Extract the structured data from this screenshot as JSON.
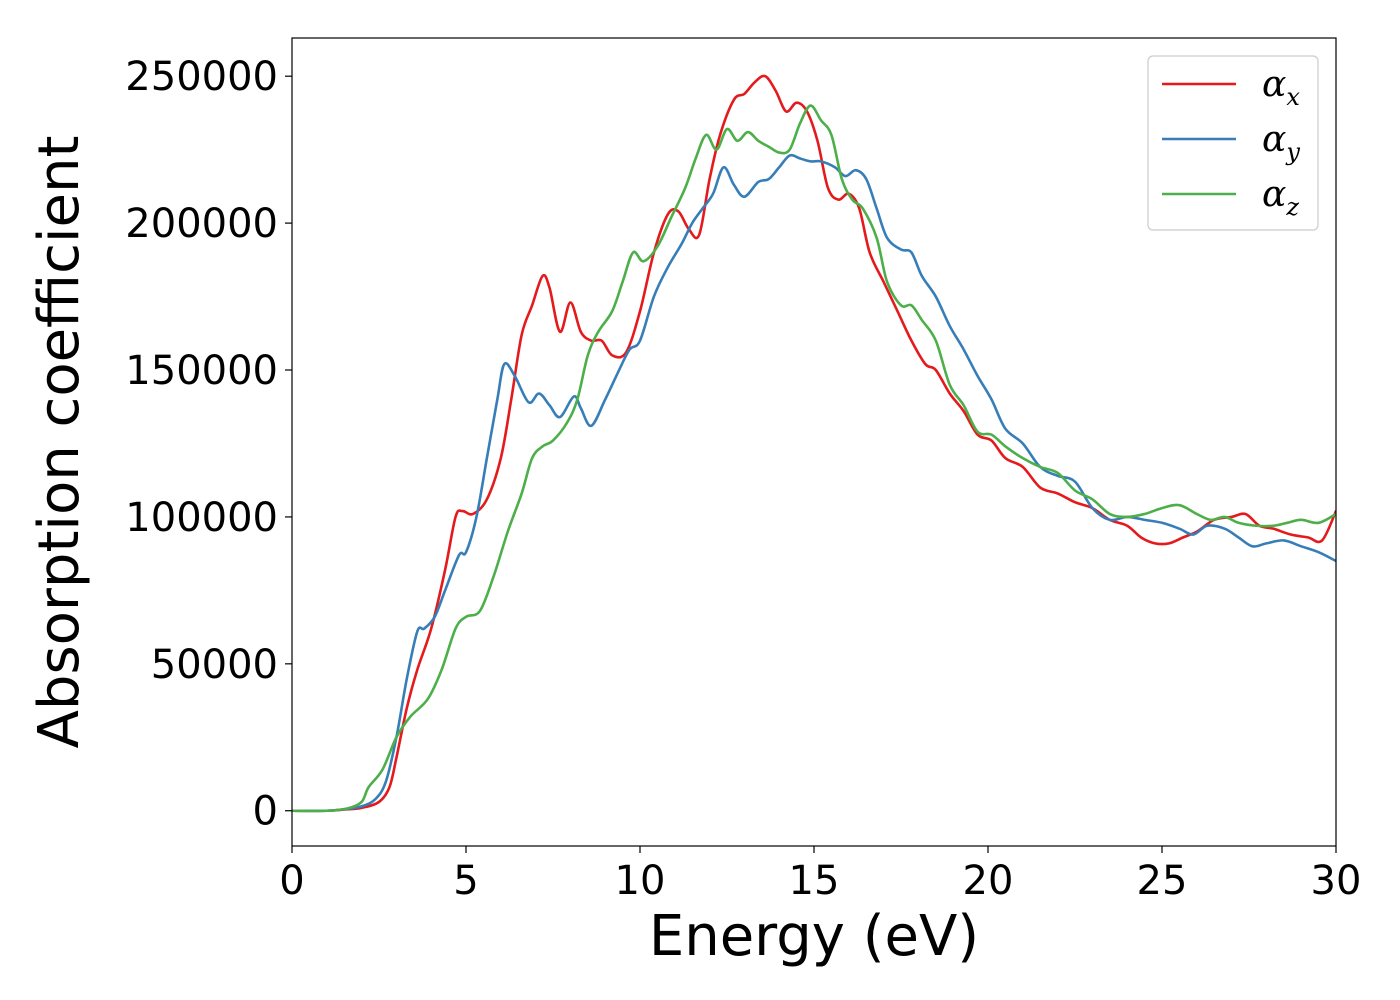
{
  "chart_data": {
    "type": "line",
    "title": "",
    "xlabel": "Energy (eV)",
    "ylabel": "Absorption coefficient",
    "xlim": [
      0,
      30
    ],
    "ylim": [
      -12000,
      263000
    ],
    "xticks": [
      0,
      5,
      10,
      15,
      20,
      25,
      30
    ],
    "xtick_labels": [
      "0",
      "5",
      "10",
      "15",
      "20",
      "25",
      "30"
    ],
    "yticks": [
      0,
      50000,
      100000,
      150000,
      200000,
      250000
    ],
    "ytick_labels": [
      "0",
      "50000",
      "100000",
      "150000",
      "200000",
      "250000"
    ],
    "grid": false,
    "legend_position": "top-right",
    "series": [
      {
        "name": "α_x",
        "legend_base": "α",
        "legend_sub": "x",
        "color": "#e41a1c",
        "points": [
          [
            0,
            0
          ],
          [
            1.0,
            0
          ],
          [
            1.5,
            400
          ],
          [
            2.0,
            1000
          ],
          [
            2.5,
            3000
          ],
          [
            2.8,
            8000
          ],
          [
            3.0,
            18000
          ],
          [
            3.3,
            35000
          ],
          [
            3.6,
            48000
          ],
          [
            4.0,
            62000
          ],
          [
            4.4,
            82000
          ],
          [
            4.7,
            100000
          ],
          [
            4.9,
            102000
          ],
          [
            5.2,
            101000
          ],
          [
            5.6,
            106000
          ],
          [
            6.0,
            120000
          ],
          [
            6.3,
            140000
          ],
          [
            6.6,
            162000
          ],
          [
            6.9,
            172000
          ],
          [
            7.2,
            182000
          ],
          [
            7.4,
            178000
          ],
          [
            7.7,
            163000
          ],
          [
            8.0,
            173000
          ],
          [
            8.3,
            163000
          ],
          [
            8.6,
            160000
          ],
          [
            8.9,
            160000
          ],
          [
            9.2,
            155000
          ],
          [
            9.6,
            156000
          ],
          [
            10.0,
            170000
          ],
          [
            10.4,
            190000
          ],
          [
            10.8,
            203000
          ],
          [
            11.1,
            204000
          ],
          [
            11.4,
            198000
          ],
          [
            11.7,
            196000
          ],
          [
            12.0,
            215000
          ],
          [
            12.3,
            230000
          ],
          [
            12.7,
            242000
          ],
          [
            13.0,
            244000
          ],
          [
            13.3,
            248000
          ],
          [
            13.6,
            250000
          ],
          [
            13.9,
            245000
          ],
          [
            14.2,
            238000
          ],
          [
            14.5,
            241000
          ],
          [
            14.8,
            238000
          ],
          [
            15.1,
            228000
          ],
          [
            15.4,
            212000
          ],
          [
            15.7,
            208000
          ],
          [
            16.0,
            210000
          ],
          [
            16.3,
            205000
          ],
          [
            16.6,
            190000
          ],
          [
            17.0,
            180000
          ],
          [
            17.4,
            170000
          ],
          [
            17.8,
            160000
          ],
          [
            18.2,
            152000
          ],
          [
            18.5,
            150000
          ],
          [
            18.9,
            142000
          ],
          [
            19.3,
            136000
          ],
          [
            19.7,
            128000
          ],
          [
            20.1,
            126000
          ],
          [
            20.5,
            120000
          ],
          [
            21.0,
            117000
          ],
          [
            21.5,
            110000
          ],
          [
            22.0,
            108000
          ],
          [
            22.5,
            105000
          ],
          [
            23.0,
            103000
          ],
          [
            23.5,
            99000
          ],
          [
            24.0,
            97000
          ],
          [
            24.4,
            93000
          ],
          [
            24.8,
            91000
          ],
          [
            25.2,
            91000
          ],
          [
            25.6,
            93000
          ],
          [
            26.0,
            95000
          ],
          [
            26.5,
            99000
          ],
          [
            27.0,
            100000
          ],
          [
            27.4,
            101000
          ],
          [
            27.8,
            97000
          ],
          [
            28.2,
            96000
          ],
          [
            28.7,
            94000
          ],
          [
            29.2,
            93000
          ],
          [
            29.6,
            92000
          ],
          [
            30,
            102000
          ]
        ]
      },
      {
        "name": "α_y",
        "legend_base": "α",
        "legend_sub": "y",
        "color": "#377eb8",
        "points": [
          [
            0,
            0
          ],
          [
            1.0,
            0
          ],
          [
            1.5,
            500
          ],
          [
            2.0,
            1500
          ],
          [
            2.4,
            4000
          ],
          [
            2.7,
            10000
          ],
          [
            3.0,
            25000
          ],
          [
            3.3,
            45000
          ],
          [
            3.6,
            61000
          ],
          [
            3.8,
            62000
          ],
          [
            4.1,
            66000
          ],
          [
            4.4,
            75000
          ],
          [
            4.8,
            87000
          ],
          [
            5.0,
            88000
          ],
          [
            5.3,
            100000
          ],
          [
            5.6,
            120000
          ],
          [
            5.9,
            140000
          ],
          [
            6.1,
            152000
          ],
          [
            6.4,
            148000
          ],
          [
            6.8,
            139000
          ],
          [
            7.1,
            142000
          ],
          [
            7.4,
            138000
          ],
          [
            7.7,
            134000
          ],
          [
            8.1,
            141000
          ],
          [
            8.3,
            137000
          ],
          [
            8.6,
            131000
          ],
          [
            9.0,
            140000
          ],
          [
            9.4,
            150000
          ],
          [
            9.7,
            157000
          ],
          [
            10.0,
            160000
          ],
          [
            10.4,
            175000
          ],
          [
            10.8,
            185000
          ],
          [
            11.2,
            193000
          ],
          [
            11.5,
            200000
          ],
          [
            11.8,
            205000
          ],
          [
            12.1,
            210000
          ],
          [
            12.4,
            219000
          ],
          [
            12.7,
            213000
          ],
          [
            13.0,
            209000
          ],
          [
            13.4,
            214000
          ],
          [
            13.7,
            215000
          ],
          [
            14.0,
            219000
          ],
          [
            14.3,
            223000
          ],
          [
            14.6,
            222000
          ],
          [
            14.9,
            221000
          ],
          [
            15.2,
            221000
          ],
          [
            15.6,
            219000
          ],
          [
            15.9,
            216000
          ],
          [
            16.2,
            218000
          ],
          [
            16.5,
            215000
          ],
          [
            16.8,
            205000
          ],
          [
            17.1,
            195000
          ],
          [
            17.5,
            191000
          ],
          [
            17.8,
            190000
          ],
          [
            18.1,
            182000
          ],
          [
            18.5,
            175000
          ],
          [
            18.9,
            165000
          ],
          [
            19.3,
            157000
          ],
          [
            19.7,
            148000
          ],
          [
            20.1,
            140000
          ],
          [
            20.5,
            130000
          ],
          [
            21.0,
            125000
          ],
          [
            21.5,
            117000
          ],
          [
            22.0,
            114000
          ],
          [
            22.5,
            112000
          ],
          [
            23.0,
            103000
          ],
          [
            23.5,
            99000
          ],
          [
            24.0,
            100000
          ],
          [
            24.5,
            99000
          ],
          [
            25.0,
            98000
          ],
          [
            25.5,
            96000
          ],
          [
            25.9,
            94000
          ],
          [
            26.3,
            97000
          ],
          [
            26.8,
            96000
          ],
          [
            27.2,
            93000
          ],
          [
            27.6,
            90000
          ],
          [
            28.0,
            91000
          ],
          [
            28.5,
            92000
          ],
          [
            29.0,
            90000
          ],
          [
            29.5,
            88000
          ],
          [
            30,
            85000
          ]
        ]
      },
      {
        "name": "α_z",
        "legend_base": "α",
        "legend_sub": "z",
        "color": "#4daf4a",
        "points": [
          [
            0,
            0
          ],
          [
            1.0,
            0
          ],
          [
            1.6,
            800
          ],
          [
            2.0,
            3000
          ],
          [
            2.2,
            8000
          ],
          [
            2.6,
            14000
          ],
          [
            3.0,
            25000
          ],
          [
            3.4,
            32000
          ],
          [
            3.9,
            38000
          ],
          [
            4.3,
            48000
          ],
          [
            4.7,
            62000
          ],
          [
            5.0,
            66000
          ],
          [
            5.4,
            68000
          ],
          [
            5.8,
            80000
          ],
          [
            6.2,
            95000
          ],
          [
            6.6,
            108000
          ],
          [
            6.9,
            120000
          ],
          [
            7.2,
            124000
          ],
          [
            7.5,
            126000
          ],
          [
            7.9,
            132000
          ],
          [
            8.2,
            140000
          ],
          [
            8.5,
            155000
          ],
          [
            8.8,
            163000
          ],
          [
            9.2,
            170000
          ],
          [
            9.5,
            180000
          ],
          [
            9.8,
            190000
          ],
          [
            10.1,
            187000
          ],
          [
            10.5,
            192000
          ],
          [
            10.9,
            202000
          ],
          [
            11.3,
            212000
          ],
          [
            11.6,
            222000
          ],
          [
            11.9,
            230000
          ],
          [
            12.2,
            225000
          ],
          [
            12.5,
            232000
          ],
          [
            12.8,
            228000
          ],
          [
            13.1,
            231000
          ],
          [
            13.4,
            228000
          ],
          [
            13.7,
            226000
          ],
          [
            14.0,
            224000
          ],
          [
            14.3,
            225000
          ],
          [
            14.6,
            234000
          ],
          [
            14.9,
            240000
          ],
          [
            15.2,
            235000
          ],
          [
            15.5,
            230000
          ],
          [
            15.8,
            215000
          ],
          [
            16.1,
            208000
          ],
          [
            16.4,
            205000
          ],
          [
            16.8,
            195000
          ],
          [
            17.1,
            180000
          ],
          [
            17.5,
            172000
          ],
          [
            17.8,
            172000
          ],
          [
            18.1,
            167000
          ],
          [
            18.5,
            160000
          ],
          [
            18.9,
            145000
          ],
          [
            19.3,
            138000
          ],
          [
            19.7,
            129000
          ],
          [
            20.1,
            128000
          ],
          [
            20.5,
            124000
          ],
          [
            21.0,
            120000
          ],
          [
            21.5,
            117000
          ],
          [
            22.0,
            115000
          ],
          [
            22.5,
            109000
          ],
          [
            23.0,
            106000
          ],
          [
            23.5,
            101000
          ],
          [
            24.0,
            100000
          ],
          [
            24.5,
            101000
          ],
          [
            25.0,
            103000
          ],
          [
            25.5,
            104000
          ],
          [
            26.0,
            101000
          ],
          [
            26.4,
            99000
          ],
          [
            26.8,
            100000
          ],
          [
            27.2,
            98000
          ],
          [
            27.7,
            97000
          ],
          [
            28.2,
            97000
          ],
          [
            28.6,
            98000
          ],
          [
            29.0,
            99000
          ],
          [
            29.5,
            98000
          ],
          [
            30,
            101000
          ]
        ]
      }
    ]
  }
}
